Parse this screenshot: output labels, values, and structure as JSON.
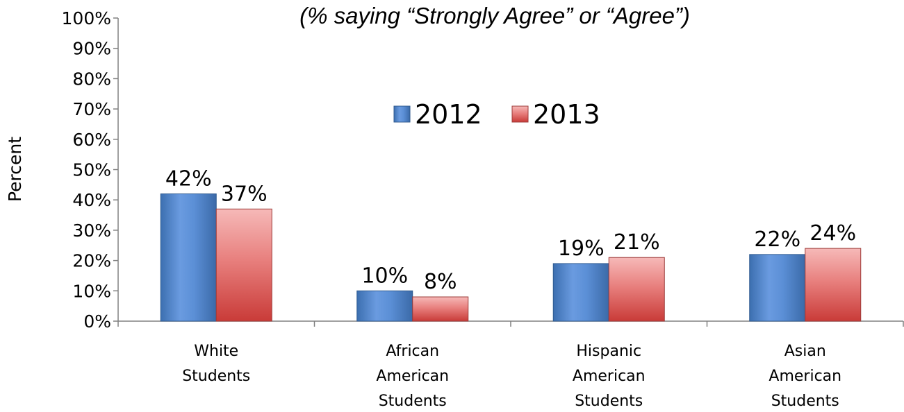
{
  "chart_data": {
    "type": "bar",
    "subtitle": "(% saying “Strongly Agree” or “Agree”)",
    "ylabel": "Percent",
    "ylim": [
      0,
      100
    ],
    "yticks": [
      "0%",
      "10%",
      "20%",
      "30%",
      "40%",
      "50%",
      "60%",
      "70%",
      "80%",
      "90%",
      "100%"
    ],
    "categories": [
      [
        "White",
        "Students"
      ],
      [
        "African",
        "American",
        "Students"
      ],
      [
        "Hispanic",
        "American",
        "Students"
      ],
      [
        "Asian",
        "American",
        "Students"
      ]
    ],
    "series": [
      {
        "name": "2012",
        "values": [
          42,
          10,
          19,
          22
        ],
        "labels": [
          "42%",
          "10%",
          "19%",
          "22%"
        ],
        "color": "#4f81bd"
      },
      {
        "name": "2013",
        "values": [
          37,
          8,
          21,
          24
        ],
        "labels": [
          "37%",
          "8%",
          "21%",
          "24%"
        ],
        "color": "#c0504d"
      }
    ],
    "legend_position": "top-center",
    "grid": false
  }
}
